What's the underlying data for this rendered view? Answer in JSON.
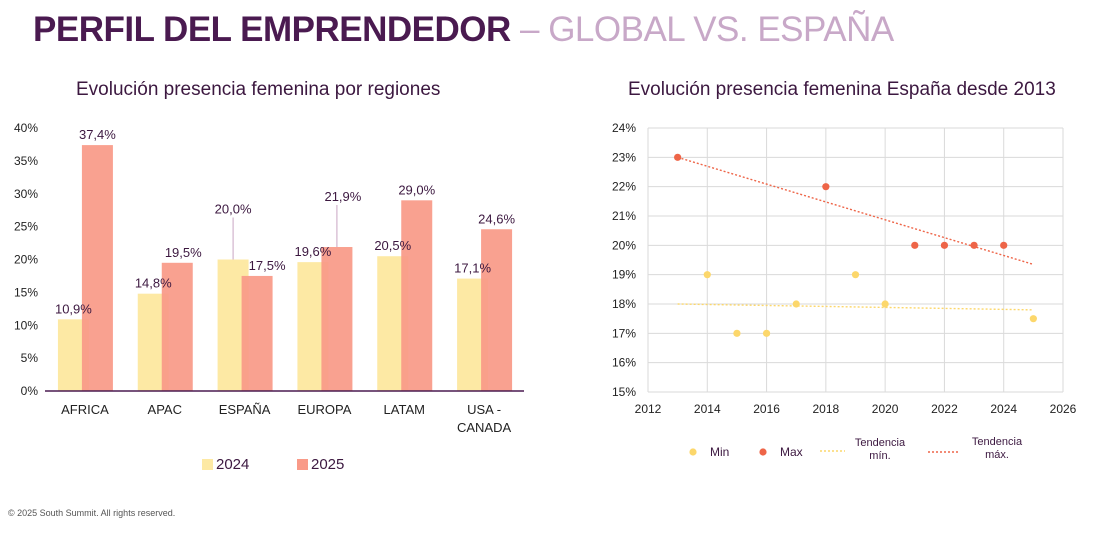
{
  "header": {
    "title_bold": "PERFIL DEL EMPRENDEDOR",
    "title_light": "– GLOBAL VS. ESPAÑA"
  },
  "footer": {
    "copyright": "© 2025 South Summit.  All rights reserved."
  },
  "colors": {
    "c2024": "#fde9a4",
    "c2025": "#f99a88",
    "min": "#fcd76b",
    "max": "#ee6548"
  },
  "chart_data": [
    {
      "type": "bar",
      "title": "Evolución presencia femenina por regiones",
      "categories": [
        "AFRICA",
        "APAC",
        "ESPAÑA",
        "EUROPA",
        "LATAM",
        "USA - CANADA"
      ],
      "series": [
        {
          "name": "2024",
          "values": [
            10.9,
            14.8,
            20.0,
            19.6,
            20.5,
            17.1
          ],
          "labels": [
            "10,9%",
            "14,8%",
            "20,0%",
            "19,6%",
            "20,5%",
            "17,1%"
          ]
        },
        {
          "name": "2025",
          "values": [
            37.4,
            19.5,
            17.5,
            21.9,
            29.0,
            24.6
          ],
          "labels": [
            "37,4%",
            "19,5%",
            "17,5%",
            "21,9%",
            "29,0%",
            "24,6%"
          ]
        }
      ],
      "ylim": [
        0,
        40
      ],
      "yticks": [
        "0%",
        "5%",
        "10%",
        "15%",
        "20%",
        "25%",
        "30%",
        "35%",
        "40%"
      ],
      "legend": "bottom"
    },
    {
      "type": "scatter",
      "title": "Evolución presencia femenina España desde 2013",
      "xlim": [
        2012,
        2026
      ],
      "ylim": [
        15,
        24
      ],
      "xticks": [
        "2012",
        "2014",
        "2016",
        "2018",
        "2020",
        "2022",
        "2024",
        "2026"
      ],
      "yticks": [
        "15%",
        "16%",
        "17%",
        "18%",
        "19%",
        "20%",
        "21%",
        "22%",
        "23%",
        "24%"
      ],
      "grid": true,
      "series": [
        {
          "name": "Min",
          "points": [
            [
              2014,
              19
            ],
            [
              2015,
              17
            ],
            [
              2016,
              17
            ],
            [
              2017,
              18
            ],
            [
              2019,
              19
            ],
            [
              2020,
              18
            ],
            [
              2025,
              17.5
            ]
          ]
        },
        {
          "name": "Max",
          "points": [
            [
              2013,
              23
            ],
            [
              2018,
              22
            ],
            [
              2021,
              20
            ],
            [
              2022,
              20
            ],
            [
              2023,
              20
            ],
            [
              2024,
              20
            ]
          ]
        }
      ],
      "trendlines": [
        {
          "name": "Tendencia mín.",
          "from": [
            2013,
            18.0
          ],
          "to": [
            2025,
            17.8
          ]
        },
        {
          "name": "Tendencia máx.",
          "from": [
            2013,
            23.0
          ],
          "to": [
            2025,
            19.35
          ]
        }
      ],
      "legend": "bottom"
    }
  ]
}
